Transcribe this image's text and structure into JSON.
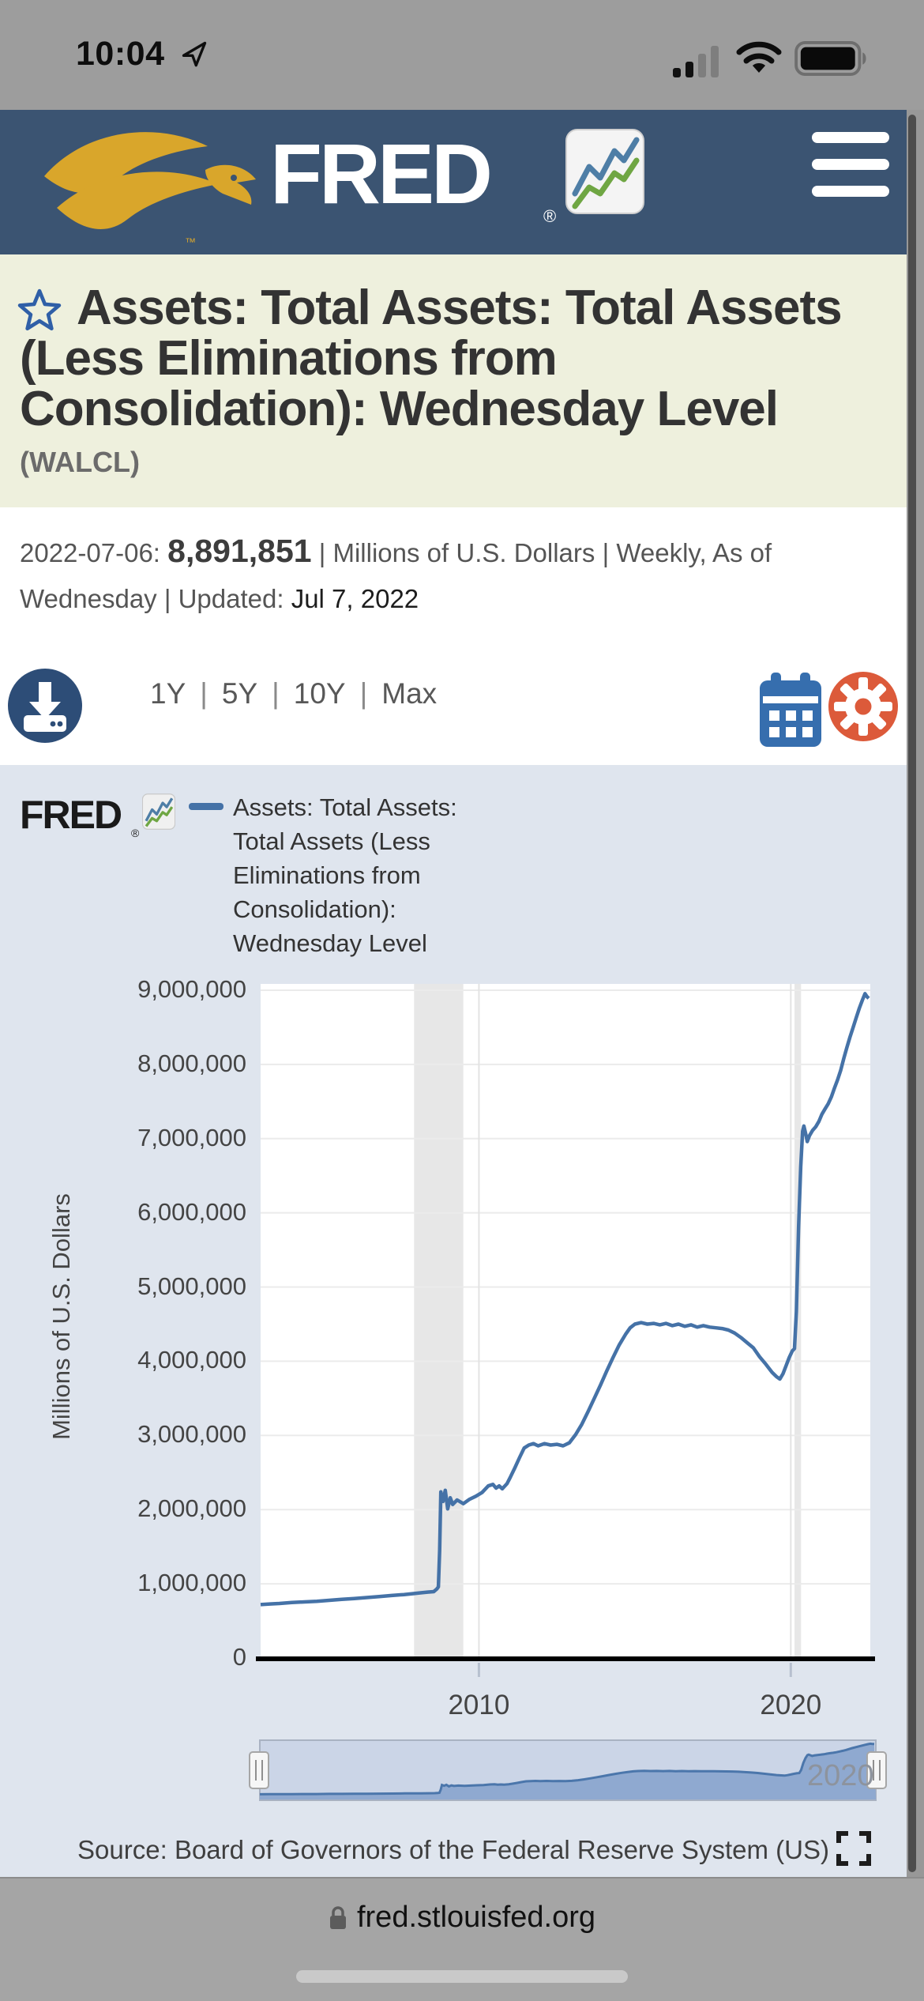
{
  "status_bar": {
    "time": "10:04"
  },
  "header": {
    "brand": "FRED",
    "registered": "®"
  },
  "title_section": {
    "title": "Assets: Total Assets: Total Assets (Less Eliminations from Consolidation): Wednesday Level",
    "series_id": "(WALCL)"
  },
  "observation": {
    "date_label": "2022-07-06:",
    "value": "8,891,851",
    "sep": "|",
    "units": "Millions of U.S. Dollars",
    "frequency": "Weekly, As of Wednesday",
    "updated_label": "Updated:",
    "updated_date": "Jul 7, 2022"
  },
  "toolbar": {
    "ranges": [
      "1Y",
      "5Y",
      "10Y",
      "Max"
    ]
  },
  "chart": {
    "watermark": "FRED",
    "watermark_reg": "®",
    "legend_lines": [
      "Assets: Total Assets:",
      "Total Assets (Less",
      "Eliminations from",
      "Consolidation):",
      "Wednesday Level"
    ]
  },
  "chart_data": {
    "type": "line",
    "title": "Assets: Total Assets: Total Assets (Less Eliminations from Consolidation): Wednesday Level",
    "ylabel": "Millions of U.S. Dollars",
    "xlabel": "",
    "x_range": [
      2003.0,
      2022.55
    ],
    "y_range": [
      0,
      9000000
    ],
    "grid": true,
    "legend_position": "top",
    "line_color": "#4572a7",
    "recession_band_color": "#e7e7e7",
    "yticks": [
      {
        "value": 0,
        "label": "0"
      },
      {
        "value": 1000000,
        "label": "1,000,000"
      },
      {
        "value": 2000000,
        "label": "2,000,000"
      },
      {
        "value": 3000000,
        "label": "3,000,000"
      },
      {
        "value": 4000000,
        "label": "4,000,000"
      },
      {
        "value": 5000000,
        "label": "5,000,000"
      },
      {
        "value": 6000000,
        "label": "6,000,000"
      },
      {
        "value": 7000000,
        "label": "7,000,000"
      },
      {
        "value": 8000000,
        "label": "8,000,000"
      },
      {
        "value": 9000000,
        "label": "9,000,000"
      }
    ],
    "xticks": [
      {
        "value": 2010,
        "label": "2010"
      },
      {
        "value": 2020,
        "label": "2020"
      }
    ],
    "recession_bands": [
      [
        2007.92,
        2009.5
      ],
      [
        2020.12,
        2020.33
      ]
    ],
    "series": [
      {
        "name": "Assets: Total Assets: Total Assets (Less Eliminations from Consolidation): Wednesday Level",
        "points": [
          [
            2003.0,
            720000
          ],
          [
            2003.3,
            728000
          ],
          [
            2003.6,
            735000
          ],
          [
            2004.0,
            748000
          ],
          [
            2004.4,
            756000
          ],
          [
            2004.8,
            765000
          ],
          [
            2005.2,
            778000
          ],
          [
            2005.6,
            790000
          ],
          [
            2006.0,
            802000
          ],
          [
            2006.4,
            815000
          ],
          [
            2006.8,
            828000
          ],
          [
            2007.2,
            842000
          ],
          [
            2007.6,
            855000
          ],
          [
            2007.9,
            868000
          ],
          [
            2008.1,
            878000
          ],
          [
            2008.35,
            888000
          ],
          [
            2008.55,
            895000
          ],
          [
            2008.65,
            930000
          ],
          [
            2008.7,
            960000
          ],
          [
            2008.74,
            1450000
          ],
          [
            2008.78,
            2240000
          ],
          [
            2008.85,
            2110000
          ],
          [
            2008.92,
            2260000
          ],
          [
            2009.0,
            2010000
          ],
          [
            2009.08,
            2160000
          ],
          [
            2009.16,
            2070000
          ],
          [
            2009.3,
            2130000
          ],
          [
            2009.5,
            2080000
          ],
          [
            2009.7,
            2140000
          ],
          [
            2009.9,
            2180000
          ],
          [
            2010.1,
            2230000
          ],
          [
            2010.3,
            2320000
          ],
          [
            2010.45,
            2340000
          ],
          [
            2010.55,
            2290000
          ],
          [
            2010.65,
            2320000
          ],
          [
            2010.75,
            2280000
          ],
          [
            2010.9,
            2350000
          ],
          [
            2011.0,
            2430000
          ],
          [
            2011.15,
            2560000
          ],
          [
            2011.3,
            2700000
          ],
          [
            2011.45,
            2830000
          ],
          [
            2011.6,
            2870000
          ],
          [
            2011.75,
            2890000
          ],
          [
            2011.9,
            2860000
          ],
          [
            2012.1,
            2890000
          ],
          [
            2012.3,
            2870000
          ],
          [
            2012.5,
            2880000
          ],
          [
            2012.7,
            2860000
          ],
          [
            2012.9,
            2900000
          ],
          [
            2013.1,
            3010000
          ],
          [
            2013.3,
            3150000
          ],
          [
            2013.5,
            3320000
          ],
          [
            2013.7,
            3500000
          ],
          [
            2013.9,
            3680000
          ],
          [
            2014.1,
            3870000
          ],
          [
            2014.3,
            4050000
          ],
          [
            2014.5,
            4220000
          ],
          [
            2014.7,
            4360000
          ],
          [
            2014.85,
            4450000
          ],
          [
            2015.0,
            4500000
          ],
          [
            2015.2,
            4520000
          ],
          [
            2015.4,
            4500000
          ],
          [
            2015.6,
            4510000
          ],
          [
            2015.8,
            4490000
          ],
          [
            2016.0,
            4510000
          ],
          [
            2016.2,
            4480000
          ],
          [
            2016.4,
            4500000
          ],
          [
            2016.6,
            4470000
          ],
          [
            2016.8,
            4490000
          ],
          [
            2017.0,
            4460000
          ],
          [
            2017.2,
            4480000
          ],
          [
            2017.4,
            4460000
          ],
          [
            2017.6,
            4450000
          ],
          [
            2017.8,
            4440000
          ],
          [
            2018.0,
            4420000
          ],
          [
            2018.2,
            4380000
          ],
          [
            2018.4,
            4320000
          ],
          [
            2018.6,
            4250000
          ],
          [
            2018.8,
            4180000
          ],
          [
            2019.0,
            4060000
          ],
          [
            2019.2,
            3960000
          ],
          [
            2019.4,
            3850000
          ],
          [
            2019.55,
            3790000
          ],
          [
            2019.65,
            3760000
          ],
          [
            2019.75,
            3830000
          ],
          [
            2019.85,
            3940000
          ],
          [
            2019.95,
            4050000
          ],
          [
            2020.05,
            4140000
          ],
          [
            2020.12,
            4170000
          ],
          [
            2020.18,
            4670000
          ],
          [
            2020.25,
            5810000
          ],
          [
            2020.32,
            6620000
          ],
          [
            2020.38,
            7100000
          ],
          [
            2020.42,
            7170000
          ],
          [
            2020.48,
            7060000
          ],
          [
            2020.53,
            6960000
          ],
          [
            2020.6,
            7040000
          ],
          [
            2020.7,
            7110000
          ],
          [
            2020.8,
            7160000
          ],
          [
            2020.9,
            7230000
          ],
          [
            2021.0,
            7330000
          ],
          [
            2021.1,
            7400000
          ],
          [
            2021.2,
            7470000
          ],
          [
            2021.3,
            7560000
          ],
          [
            2021.4,
            7680000
          ],
          [
            2021.5,
            7790000
          ],
          [
            2021.6,
            7920000
          ],
          [
            2021.7,
            8080000
          ],
          [
            2021.8,
            8230000
          ],
          [
            2021.9,
            8370000
          ],
          [
            2022.0,
            8500000
          ],
          [
            2022.1,
            8630000
          ],
          [
            2022.2,
            8760000
          ],
          [
            2022.3,
            8870000
          ],
          [
            2022.38,
            8954000
          ],
          [
            2022.44,
            8915000
          ],
          [
            2022.5,
            8891851
          ]
        ]
      }
    ]
  },
  "slider": {
    "year_label": "2020"
  },
  "source": {
    "text": "Source: Board of Governors of the Federal Reserve System (US)"
  },
  "browser": {
    "url": "fred.stlouisfed.org"
  },
  "icons": {
    "colors": {
      "header_navy": "#3b5472",
      "eagle_gold": "#d9a62b",
      "calendar_blue": "#366eae",
      "settings_orange": "#dc5a3a",
      "download_navy": "#2d4d77",
      "star_blue": "#2f5fa7",
      "chart_bg": "#dfe5ee"
    }
  }
}
